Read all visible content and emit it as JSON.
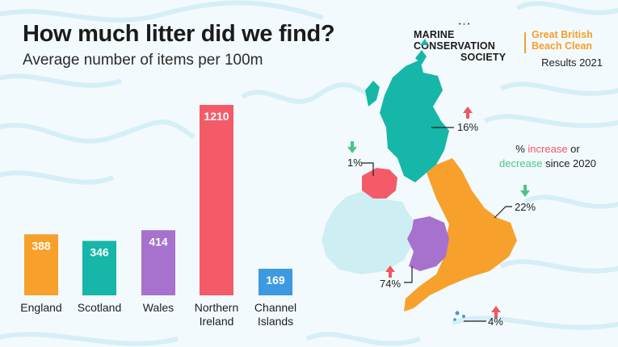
{
  "title": "How much litter did we find?",
  "subtitle": "Average number of items per 100m",
  "logo": {
    "org_line1": "MARINE CONSERVATION",
    "org_line2": "SOCIETY",
    "event_line1": "Great British",
    "event_line2": "Beach Clean"
  },
  "results_label": "Results 2021",
  "chart_data": {
    "type": "bar",
    "title": "How much litter did we find?",
    "subtitle": "Average number of items per 100m",
    "categories": [
      "England",
      "Scotland",
      "Wales",
      "Northern Ireland",
      "Channel Islands"
    ],
    "category_lines": [
      [
        "England"
      ],
      [
        "Scotland"
      ],
      [
        "Wales"
      ],
      [
        "Northern",
        "Ireland"
      ],
      [
        "Channel",
        "Islands"
      ]
    ],
    "values": [
      388,
      346,
      414,
      1210,
      169
    ],
    "value_labels": [
      "388",
      "346",
      "414",
      "1210",
      "169"
    ],
    "colors": [
      "#f7a12c",
      "#16b6a8",
      "#a771ce",
      "#f45b69",
      "#3d9ae0"
    ],
    "ylim": [
      0,
      1210
    ],
    "grid": false,
    "legend": "none"
  },
  "map": {
    "legend_line1_prefix": "% ",
    "legend_line1_highlight": "increase",
    "legend_line1_suffix": " or",
    "legend_line2_highlight": "decrease",
    "legend_line2_suffix": " since 2020",
    "changes": [
      {
        "region": "Scotland",
        "label": "16%",
        "direction": "increase"
      },
      {
        "region": "Northern Ireland",
        "label": "1%",
        "direction": "decrease"
      },
      {
        "region": "England",
        "label": "22%",
        "direction": "decrease"
      },
      {
        "region": "Wales",
        "label": "74%",
        "direction": "increase"
      },
      {
        "region": "Channel Islands",
        "label": "4%",
        "direction": "increase"
      }
    ],
    "colors": {
      "increase": "#f05660",
      "decrease": "#4cc48a",
      "scotland": "#16b6a8",
      "england": "#f7a12c",
      "wales": "#a771ce",
      "northern_ireland": "#f45b69",
      "ireland": "#cdeef3",
      "channel_islands": "#3d9ae0"
    }
  }
}
